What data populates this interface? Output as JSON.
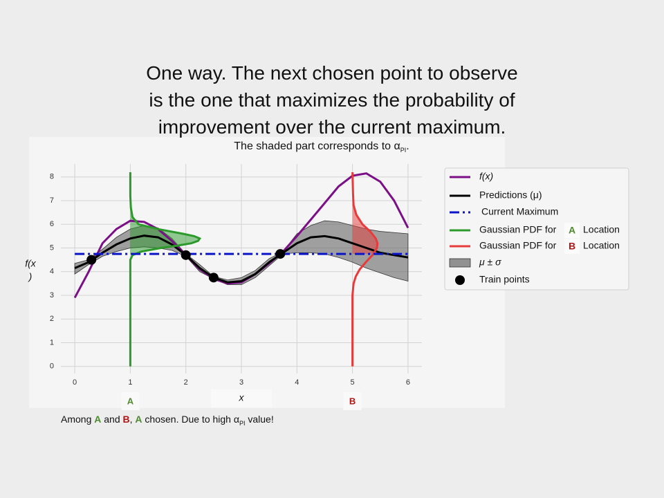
{
  "chart_data": {
    "type": "line",
    "title_lines": [
      "One way. The next chosen point to observe",
      "is the one that maximizes the probability of",
      "improvement over the current maximum."
    ],
    "subtitle": [
      {
        "text": "The shaded part corresponds to α"
      },
      {
        "text": "PI",
        "sub": true
      },
      {
        "text": "."
      }
    ],
    "xlabel": "x",
    "ylabel_lines": [
      "f(x",
      ")"
    ],
    "xlim": [
      -0.25,
      6.25
    ],
    "ylim": [
      -0.3,
      8.55
    ],
    "xticks": [
      0,
      1,
      2,
      3,
      4,
      5,
      6
    ],
    "yticks": [
      0,
      1,
      2,
      3,
      4,
      5,
      6,
      7,
      8
    ],
    "grid": true,
    "x": [
      0,
      0.25,
      0.5,
      0.75,
      1,
      1.25,
      1.5,
      1.75,
      2,
      2.25,
      2.5,
      2.75,
      3,
      3.25,
      3.5,
      3.75,
      4,
      4.25,
      4.5,
      4.75,
      5,
      5.25,
      5.5,
      5.75,
      6
    ],
    "band": {
      "name": "μ ± σ",
      "color": "#666666",
      "lower": [
        3.9,
        4.3,
        4.65,
        4.85,
        5.0,
        5.05,
        5.0,
        4.9,
        4.65,
        4.0,
        3.7,
        3.45,
        3.45,
        3.75,
        4.25,
        4.75,
        4.8,
        4.8,
        4.75,
        4.6,
        4.4,
        4.15,
        3.95,
        3.75,
        3.6
      ],
      "upper": [
        4.35,
        4.5,
        4.95,
        5.45,
        5.8,
        5.95,
        5.85,
        5.4,
        4.75,
        4.3,
        3.8,
        3.65,
        3.75,
        4.05,
        4.55,
        4.85,
        5.6,
        5.95,
        6.15,
        6.1,
        5.95,
        5.8,
        5.7,
        5.65,
        5.6
      ]
    },
    "series": [
      {
        "name": "f(x)",
        "italic": true,
        "color": "#7a0f86",
        "values": [
          2.9,
          4.0,
          5.2,
          5.8,
          6.15,
          6.1,
          5.8,
          5.3,
          4.7,
          4.1,
          3.7,
          3.5,
          3.55,
          3.9,
          4.35,
          4.85,
          5.5,
          6.2,
          6.9,
          7.6,
          8.05,
          8.15,
          7.8,
          7.0,
          5.85
        ]
      },
      {
        "name": "Predictions (μ)",
        "color": "#000000",
        "values": [
          4.15,
          4.4,
          4.8,
          5.15,
          5.4,
          5.52,
          5.45,
          5.15,
          4.7,
          4.15,
          3.75,
          3.55,
          3.6,
          3.9,
          4.4,
          4.8,
          5.2,
          5.45,
          5.5,
          5.4,
          5.2,
          5.0,
          4.8,
          4.7,
          4.6
        ]
      }
    ],
    "current_max": {
      "name": "Current Maximum",
      "color": "#0a14c8",
      "x": [
        0,
        6
      ],
      "values": [
        4.75,
        4.75
      ]
    },
    "pdfs": [
      {
        "name_parts": [
          "Gaussian PDF for",
          "Location"
        ],
        "label": "A",
        "color": "#2b9a2b",
        "label_color": "#4e8a2e",
        "x": [
          1,
          1,
          1.04,
          1.2,
          1.55,
          1.85,
          2.1,
          2.22,
          2.25,
          2.15,
          1.95,
          1.5,
          1.15,
          1.04,
          1.01,
          1,
          1
        ],
        "values": [
          0,
          4.5,
          4.7,
          4.85,
          5.0,
          5.1,
          5.2,
          5.3,
          5.4,
          5.5,
          5.6,
          5.8,
          6.0,
          6.3,
          6.7,
          7.2,
          8.2
        ]
      },
      {
        "name_parts": [
          "Gaussian PDF for",
          "Location"
        ],
        "label": "B",
        "color": "#e83a3a",
        "label_color": "#b01515",
        "x": [
          5,
          5,
          5.02,
          5.06,
          5.13,
          5.24,
          5.36,
          5.44,
          5.45,
          5.42,
          5.32,
          5.18,
          5.07,
          5.02,
          5.01,
          5
        ],
        "values": [
          0,
          3,
          3.5,
          3.8,
          4.1,
          4.4,
          4.7,
          5.0,
          5.2,
          5.4,
          5.7,
          6.0,
          6.4,
          6.8,
          7.3,
          8.2
        ]
      }
    ],
    "train": {
      "name": "Train points",
      "color": "#000000",
      "x": [
        0.3,
        2,
        2.5,
        3.7
      ],
      "values": [
        4.5,
        4.7,
        3.75,
        4.75
      ]
    },
    "footer": [
      {
        "text": "Among "
      },
      {
        "text": "A",
        "color": "#4e8a2e"
      },
      {
        "text": " and "
      },
      {
        "text": "B",
        "color": "#b01515"
      },
      {
        "text": ", "
      },
      {
        "text": "A",
        "color": "#4e8a2e"
      },
      {
        "text": " chosen. Due to high α"
      },
      {
        "text": "PI",
        "sub": true
      },
      {
        "text": " value!"
      }
    ]
  }
}
